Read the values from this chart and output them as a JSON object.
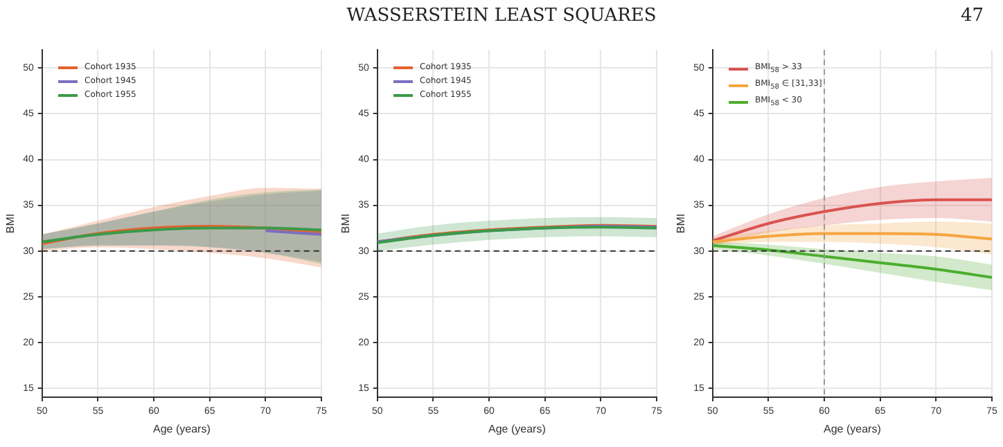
{
  "chart_data": [
    {
      "type": "line",
      "annotations": [
        "WASSERSTEIN LEAST SQUARES",
        "47"
      ],
      "xlabel": "Age (years)",
      "ylabel": "BMI",
      "x": [
        50,
        55,
        60,
        65,
        70,
        75
      ],
      "xlim": [
        50,
        75
      ],
      "xticks": [
        50,
        55,
        60,
        65,
        70,
        75
      ],
      "ylim": [
        14,
        52
      ],
      "yticks": [
        15,
        20,
        25,
        30,
        35,
        40,
        45,
        50
      ],
      "grid": true,
      "legend": "top left",
      "marker": "none",
      "line_style": "solid",
      "ref_lines": [
        {
          "axis": "y",
          "value": 30,
          "color": "#333333",
          "line_style": "dashed"
        }
      ],
      "series": [
        {
          "name": "Cohort 1935",
          "color": "#e4622f",
          "values": [
            30.8,
            31.9,
            32.5,
            32.7,
            32.5,
            32.0
          ],
          "lower": [
            30.0,
            30.4,
            30.2,
            29.8,
            29.2,
            28.2
          ],
          "upper": [
            31.8,
            33.3,
            34.8,
            36.0,
            36.9,
            36.8
          ]
        },
        {
          "name": "Cohort 1945",
          "color": "#7b6fc0",
          "values": [
            null,
            null,
            null,
            null,
            32.2,
            31.8
          ],
          "lower": [
            30.2,
            30.6,
            30.6,
            30.4,
            29.8,
            28.8
          ],
          "upper": [
            31.8,
            33.0,
            34.3,
            35.4,
            36.2,
            36.6
          ]
        },
        {
          "name": "Cohort 1955",
          "color": "#3a9a4a",
          "values": [
            31.0,
            31.8,
            32.3,
            32.5,
            32.5,
            32.3
          ],
          "lower": [
            30.2,
            30.6,
            30.6,
            30.4,
            29.8,
            28.6
          ],
          "upper": [
            31.8,
            33.0,
            34.3,
            35.6,
            36.4,
            36.7
          ]
        }
      ]
    },
    {
      "type": "line",
      "xlabel": "Age (years)",
      "ylabel": "BMI",
      "x": [
        50,
        55,
        60,
        65,
        70,
        75
      ],
      "xlim": [
        50,
        75
      ],
      "xticks": [
        50,
        55,
        60,
        65,
        70,
        75
      ],
      "ylim": [
        14,
        52
      ],
      "yticks": [
        15,
        20,
        25,
        30,
        35,
        40,
        45,
        50
      ],
      "grid": true,
      "legend": "top left",
      "marker": "none",
      "line_style": "solid",
      "ref_lines": [
        {
          "axis": "y",
          "value": 30,
          "color": "#333333",
          "line_style": "dashed"
        }
      ],
      "series": [
        {
          "name": "Cohort 1935",
          "color": "#e4622f",
          "values": [
            31.0,
            31.8,
            32.3,
            32.6,
            32.8,
            32.7
          ]
        },
        {
          "name": "Cohort 1945",
          "color": "#7b6fc0",
          "values": [
            31.0,
            31.7,
            32.2,
            32.5,
            32.7,
            32.6
          ]
        },
        {
          "name": "Cohort 1955",
          "color": "#3a9a4a",
          "values": [
            30.9,
            31.7,
            32.2,
            32.5,
            32.6,
            32.5
          ],
          "lower": [
            30.0,
            30.7,
            31.2,
            31.5,
            31.6,
            31.5
          ],
          "upper": [
            31.9,
            32.8,
            33.3,
            33.6,
            33.7,
            33.6
          ]
        }
      ]
    },
    {
      "type": "line",
      "xlabel": "Age (years)",
      "ylabel": "BMI",
      "x": [
        50,
        55,
        60,
        65,
        70,
        75
      ],
      "xlim": [
        50,
        75
      ],
      "xticks": [
        50,
        55,
        60,
        65,
        70,
        75
      ],
      "ylim": [
        14,
        52
      ],
      "yticks": [
        15,
        20,
        25,
        30,
        35,
        40,
        45,
        50
      ],
      "grid": true,
      "legend": "top left",
      "marker": "none",
      "line_style": "solid",
      "ref_lines": [
        {
          "axis": "y",
          "value": 30,
          "color": "#333333",
          "line_style": "dashed"
        },
        {
          "axis": "x",
          "value": 60,
          "color": "#999999",
          "line_style": "dashed"
        }
      ],
      "series": [
        {
          "name": "BMI$_{58}$ > 33",
          "color": "#d9534f",
          "values": [
            31.1,
            33.0,
            34.3,
            35.2,
            35.6,
            35.6
          ],
          "lower": [
            30.6,
            32.0,
            32.8,
            33.4,
            33.6,
            33.2
          ],
          "upper": [
            31.6,
            34.0,
            35.8,
            37.0,
            37.6,
            38.0
          ]
        },
        {
          "name": "BMI$_{58}$ ∈ [31,33]",
          "color": "#f5a540",
          "values": [
            31.0,
            31.6,
            31.9,
            31.9,
            31.8,
            31.3
          ],
          "lower": [
            30.6,
            31.0,
            31.0,
            30.8,
            30.4,
            29.6
          ],
          "upper": [
            31.4,
            32.2,
            32.8,
            33.0,
            33.2,
            33.0
          ]
        },
        {
          "name": "BMI$_{58}$ < 30",
          "color": "#4cad2f",
          "values": [
            30.6,
            30.1,
            29.4,
            28.7,
            28.0,
            27.1
          ],
          "lower": [
            30.2,
            29.5,
            28.6,
            27.6,
            26.6,
            25.7
          ],
          "upper": [
            31.0,
            30.7,
            30.2,
            29.8,
            29.4,
            28.5
          ]
        }
      ]
    }
  ]
}
